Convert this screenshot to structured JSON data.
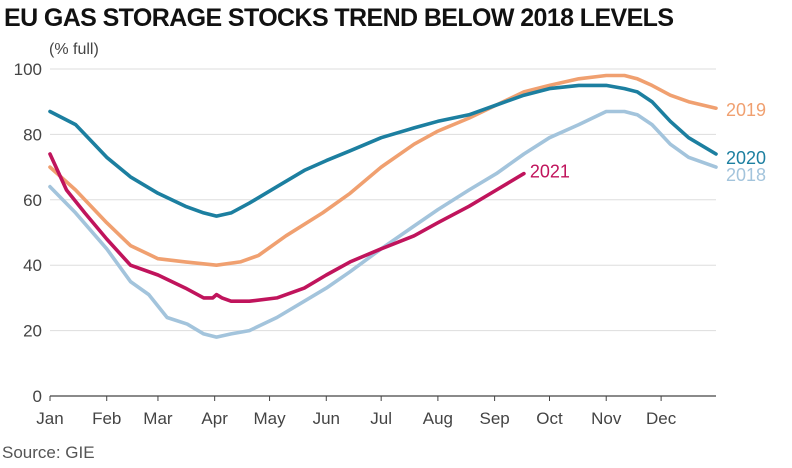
{
  "title": "EU GAS STORAGE STOCKS TREND BELOW 2018 LEVELS",
  "source": "Source: GIE",
  "chart_data": {
    "type": "line",
    "title": "EU GAS STORAGE STOCKS TREND BELOW 2018 LEVELS",
    "ylabel": "(% full)",
    "xlabel": "",
    "ylim": [
      0,
      100
    ],
    "yticks": [
      "0",
      "20",
      "40",
      "60",
      "80",
      "100"
    ],
    "xticks": [
      "Jan",
      "Feb",
      "Mar",
      "Apr",
      "May",
      "Jun",
      "Jul",
      "Aug",
      "Sep",
      "Oct",
      "Nov",
      "Dec"
    ],
    "grid": "horizontal",
    "legend": "direct labels at line ends",
    "x_unit": "day of year",
    "series": [
      {
        "name": "2018",
        "color": "#a3c4dc",
        "x": [
          1,
          15,
          32,
          45,
          55,
          65,
          76,
          85,
          92,
          100,
          110,
          125,
          140,
          152,
          165,
          182,
          200,
          213,
          230,
          245,
          260,
          274,
          290,
          305,
          315,
          322,
          330,
          340,
          350,
          365
        ],
        "y": [
          64,
          56,
          45,
          35,
          31,
          24,
          22,
          19,
          18,
          19,
          20,
          24,
          29,
          33,
          38,
          45,
          52,
          57,
          63,
          68,
          74,
          79,
          83,
          87,
          87,
          86,
          83,
          77,
          73,
          70
        ]
      },
      {
        "name": "2019",
        "color": "#f0a070",
        "x": [
          1,
          15,
          32,
          45,
          60,
          75,
          92,
          105,
          115,
          130,
          150,
          165,
          182,
          200,
          213,
          230,
          245,
          260,
          274,
          290,
          305,
          315,
          322,
          330,
          340,
          350,
          365
        ],
        "y": [
          70,
          63,
          53,
          46,
          42,
          41,
          40,
          41,
          43,
          49,
          56,
          62,
          70,
          77,
          81,
          85,
          89,
          93,
          95,
          97,
          98,
          98,
          97,
          95,
          92,
          90,
          88
        ]
      },
      {
        "name": "2020",
        "color": "#1c7fa0",
        "x": [
          1,
          15,
          32,
          45,
          60,
          75,
          85,
          92,
          100,
          110,
          125,
          140,
          152,
          165,
          182,
          200,
          213,
          230,
          245,
          260,
          274,
          290,
          305,
          315,
          322,
          330,
          340,
          350,
          365
        ],
        "y": [
          87,
          83,
          73,
          67,
          62,
          58,
          56,
          55,
          56,
          59,
          64,
          69,
          72,
          75,
          79,
          82,
          84,
          86,
          89,
          92,
          94,
          95,
          95,
          94,
          93,
          90,
          84,
          79,
          74
        ]
      },
      {
        "name": "2021",
        "color": "#c0145c",
        "x": [
          1,
          10,
          20,
          32,
          45,
          60,
          75,
          85,
          90,
          92,
          95,
          100,
          110,
          125,
          140,
          152,
          165,
          182,
          200,
          213,
          230,
          245,
          260
        ],
        "y": [
          74,
          63,
          56,
          48,
          40,
          37,
          33,
          30,
          30,
          31,
          30,
          29,
          29,
          30,
          33,
          37,
          41,
          45,
          49,
          53,
          58,
          63,
          68
        ]
      }
    ]
  }
}
